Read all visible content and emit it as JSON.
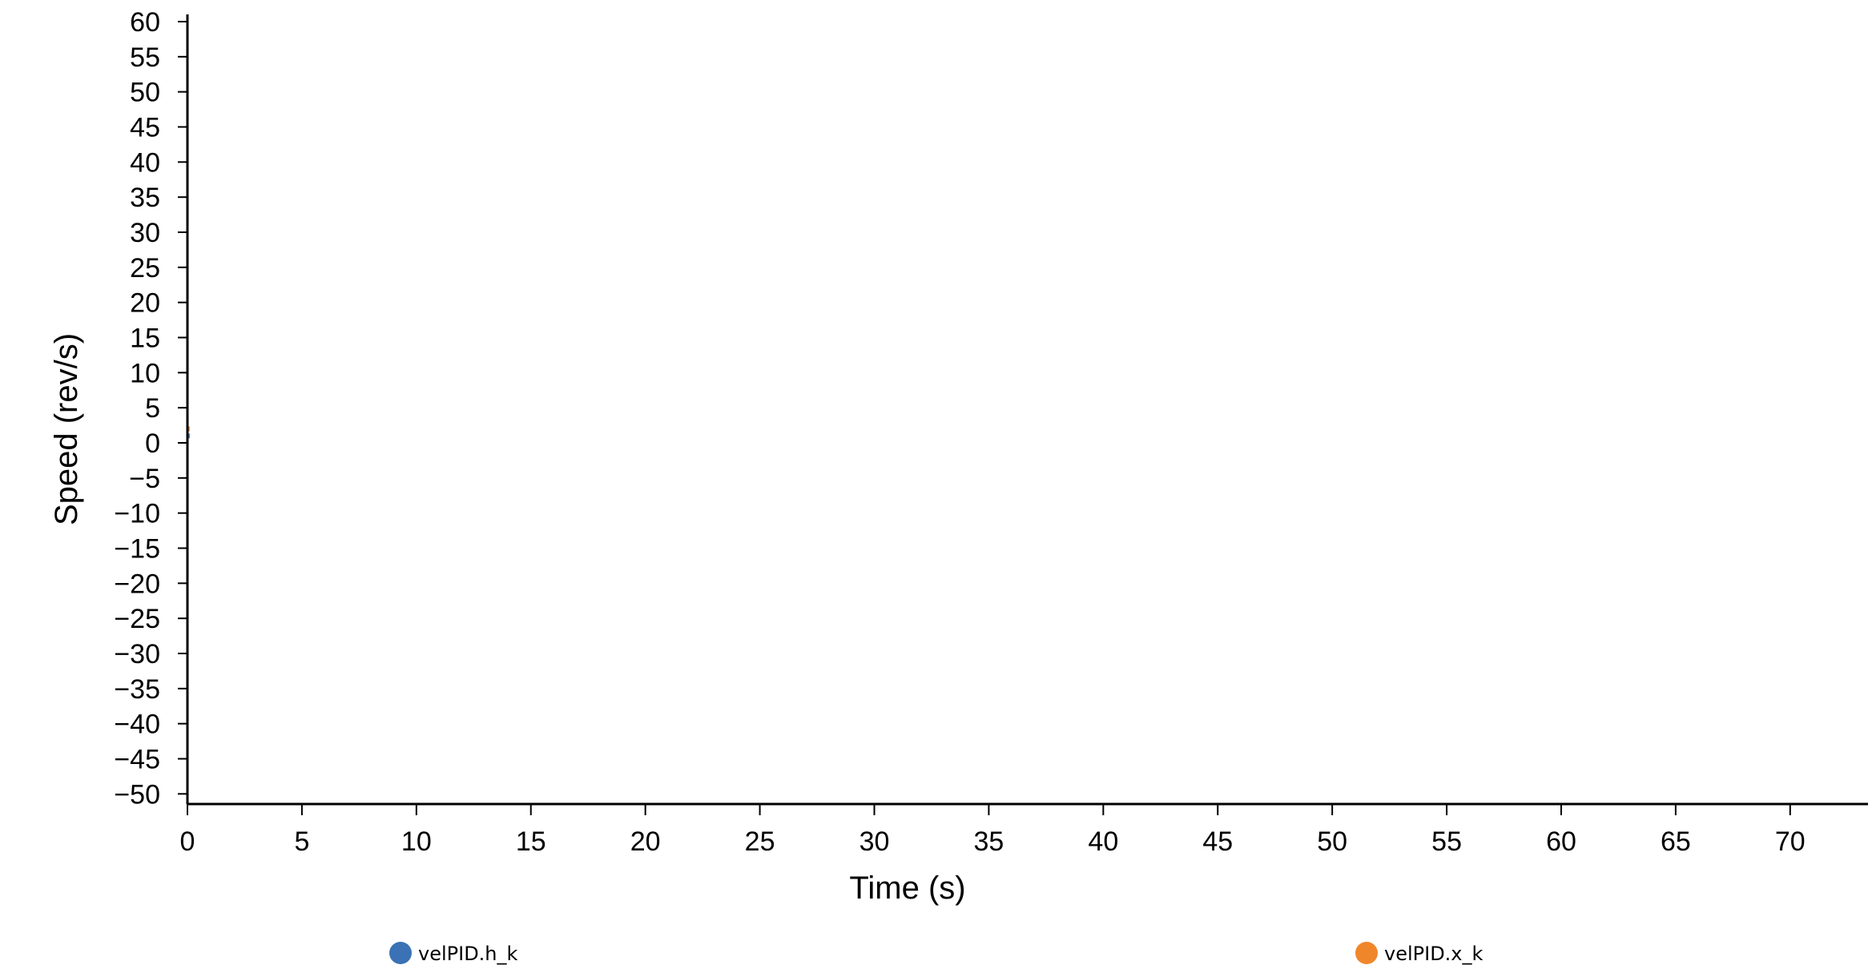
{
  "chart_data": {
    "type": "line",
    "title": "",
    "xlabel": "Time (s)",
    "ylabel": "Speed (rev/s)",
    "xlim": [
      0,
      73.4
    ],
    "ylim": [
      -51.5,
      60
    ],
    "x_ticks": [
      0,
      5,
      10,
      15,
      20,
      25,
      30,
      35,
      40,
      45,
      50,
      55,
      60,
      65,
      70
    ],
    "y_ticks": [
      60,
      55,
      50,
      45,
      40,
      35,
      30,
      25,
      20,
      15,
      10,
      5,
      0,
      -5,
      -10,
      -15,
      -20,
      -25,
      -30,
      -35,
      -40,
      -45,
      -50
    ],
    "x_tick_labels": [
      "0",
      "5",
      "10",
      "15",
      "20",
      "25",
      "30",
      "35",
      "40",
      "45",
      "50",
      "55",
      "60",
      "65",
      "70"
    ],
    "y_tick_labels": [
      "60",
      "55",
      "50",
      "45",
      "40",
      "35",
      "30",
      "25",
      "20",
      "15",
      "10",
      "5",
      "0",
      "−5",
      "−10",
      "−15",
      "−20",
      "−25",
      "−30",
      "−35",
      "−40",
      "−45",
      "−50"
    ],
    "grid": false,
    "legend_position": "bottom",
    "series": [
      {
        "name": "velPID.h_k",
        "color": "#3a72b5",
        "x": [
          0,
          0.1
        ],
        "y": [
          1.0,
          1.0
        ]
      },
      {
        "name": "velPID.x_k",
        "color": "#f0862a",
        "x": [
          0,
          0.1
        ],
        "y": [
          2.0,
          2.0
        ]
      }
    ]
  }
}
